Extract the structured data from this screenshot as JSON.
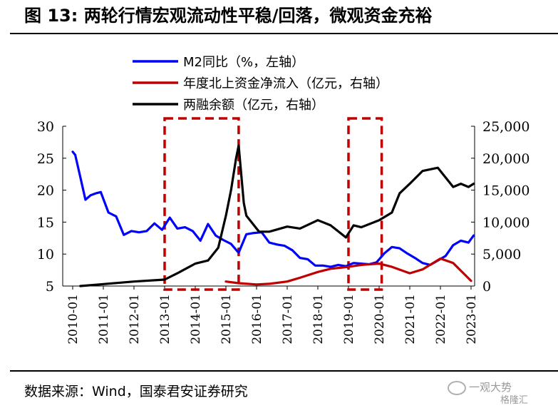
{
  "title": "图 13: 两轮行情宏观流动性平稳/回落，微观资金充裕",
  "source": "数据来源：Wind，国泰君安证券研究",
  "watermark": {
    "line1": "一观大势",
    "line2": "格隆汇"
  },
  "colors": {
    "m2": "#0000ff",
    "north": "#c00000",
    "margin": "#000000",
    "highlight": "#c00000"
  },
  "chart_data": {
    "type": "line",
    "x_ticks": [
      "2010-01",
      "2011-01",
      "2012-01",
      "2013-01",
      "2014-01",
      "2015-01",
      "2016-01",
      "2017-01",
      "2018-01",
      "2019-01",
      "2020-01",
      "2021-01",
      "2022-01",
      "2023-01"
    ],
    "y_left": {
      "ticks": [
        "30",
        "25",
        "20",
        "15",
        "10",
        "5"
      ],
      "lim": [
        5,
        30
      ]
    },
    "y_right": {
      "ticks": [
        "25,000",
        "20,000",
        "15,000",
        "10,000",
        "5,000",
        "0"
      ],
      "lim": [
        0,
        25000
      ]
    },
    "grid": false,
    "legend_position": "top",
    "highlight_boxes": [
      {
        "x0": "2013-01",
        "x1": "2015-06"
      },
      {
        "x0": "2019-01",
        "x1": "2020-02"
      }
    ],
    "series": [
      {
        "name": "M2同比（%，左轴）",
        "axis": "left",
        "points": [
          [
            "2010-01",
            26.0
          ],
          [
            "2010-02",
            25.5
          ],
          [
            "2010-04",
            22.0
          ],
          [
            "2010-06",
            18.5
          ],
          [
            "2010-08",
            19.2
          ],
          [
            "2010-10",
            19.5
          ],
          [
            "2010-12",
            19.7
          ],
          [
            "2011-03",
            16.5
          ],
          [
            "2011-06",
            15.9
          ],
          [
            "2011-09",
            13.0
          ],
          [
            "2011-12",
            13.6
          ],
          [
            "2012-03",
            13.4
          ],
          [
            "2012-06",
            13.6
          ],
          [
            "2012-09",
            14.8
          ],
          [
            "2012-12",
            13.8
          ],
          [
            "2013-03",
            15.7
          ],
          [
            "2013-06",
            14.0
          ],
          [
            "2013-09",
            14.2
          ],
          [
            "2013-12",
            13.6
          ],
          [
            "2014-03",
            12.1
          ],
          [
            "2014-06",
            14.7
          ],
          [
            "2014-09",
            12.9
          ],
          [
            "2014-12",
            12.2
          ],
          [
            "2015-03",
            11.6
          ],
          [
            "2015-06",
            10.2
          ],
          [
            "2015-09",
            13.1
          ],
          [
            "2015-12",
            13.3
          ],
          [
            "2016-03",
            13.4
          ],
          [
            "2016-06",
            11.8
          ],
          [
            "2016-09",
            11.5
          ],
          [
            "2016-12",
            11.3
          ],
          [
            "2017-03",
            10.6
          ],
          [
            "2017-06",
            9.4
          ],
          [
            "2017-09",
            9.2
          ],
          [
            "2017-12",
            8.2
          ],
          [
            "2018-03",
            8.2
          ],
          [
            "2018-06",
            8.0
          ],
          [
            "2018-09",
            8.3
          ],
          [
            "2018-12",
            8.1
          ],
          [
            "2019-03",
            8.6
          ],
          [
            "2019-06",
            8.5
          ],
          [
            "2019-09",
            8.4
          ],
          [
            "2019-12",
            8.7
          ],
          [
            "2020-03",
            10.1
          ],
          [
            "2020-06",
            11.1
          ],
          [
            "2020-09",
            10.9
          ],
          [
            "2020-12",
            10.1
          ],
          [
            "2021-03",
            9.4
          ],
          [
            "2021-06",
            8.6
          ],
          [
            "2021-09",
            8.3
          ],
          [
            "2021-12",
            9.0
          ],
          [
            "2022-03",
            9.7
          ],
          [
            "2022-06",
            11.4
          ],
          [
            "2022-09",
            12.1
          ],
          [
            "2022-12",
            11.8
          ],
          [
            "2023-02",
            12.9
          ]
        ]
      },
      {
        "name": "年度北上资金净流入（亿元，右轴）",
        "axis": "right",
        "points": [
          [
            "2015-01",
            700
          ],
          [
            "2015-06",
            450
          ],
          [
            "2016-01",
            250
          ],
          [
            "2016-06",
            350
          ],
          [
            "2017-01",
            700
          ],
          [
            "2017-06",
            1300
          ],
          [
            "2018-01",
            2200
          ],
          [
            "2018-06",
            2700
          ],
          [
            "2019-01",
            3000
          ],
          [
            "2019-06",
            3300
          ],
          [
            "2020-01",
            3500
          ],
          [
            "2020-06",
            3000
          ],
          [
            "2021-01",
            2000
          ],
          [
            "2021-06",
            2600
          ],
          [
            "2022-01",
            4300
          ],
          [
            "2022-06",
            3600
          ],
          [
            "2023-01",
            800
          ]
        ]
      },
      {
        "name": "两融余额（亿元，右轴）",
        "axis": "right",
        "points": [
          [
            "2010-04",
            0
          ],
          [
            "2011-01",
            300
          ],
          [
            "2012-01",
            700
          ],
          [
            "2013-01",
            1000
          ],
          [
            "2013-06",
            2000
          ],
          [
            "2014-01",
            3500
          ],
          [
            "2014-06",
            4000
          ],
          [
            "2014-10",
            6000
          ],
          [
            "2015-01",
            11000
          ],
          [
            "2015-03",
            15000
          ],
          [
            "2015-05",
            20000
          ],
          [
            "2015-06",
            22000
          ],
          [
            "2015-08",
            13000
          ],
          [
            "2015-09",
            11000
          ],
          [
            "2016-01",
            9000
          ],
          [
            "2016-02",
            8500
          ],
          [
            "2016-06",
            8500
          ],
          [
            "2017-01",
            9300
          ],
          [
            "2017-06",
            9000
          ],
          [
            "2018-01",
            10300
          ],
          [
            "2018-06",
            9500
          ],
          [
            "2018-12",
            7600
          ],
          [
            "2019-03",
            9500
          ],
          [
            "2019-06",
            9200
          ],
          [
            "2020-01",
            10300
          ],
          [
            "2020-06",
            11500
          ],
          [
            "2020-09",
            14500
          ],
          [
            "2021-01",
            16000
          ],
          [
            "2021-06",
            18000
          ],
          [
            "2021-12",
            18500
          ],
          [
            "2022-03",
            17000
          ],
          [
            "2022-06",
            15500
          ],
          [
            "2022-09",
            16000
          ],
          [
            "2022-12",
            15500
          ],
          [
            "2023-02",
            16000
          ]
        ]
      }
    ]
  }
}
